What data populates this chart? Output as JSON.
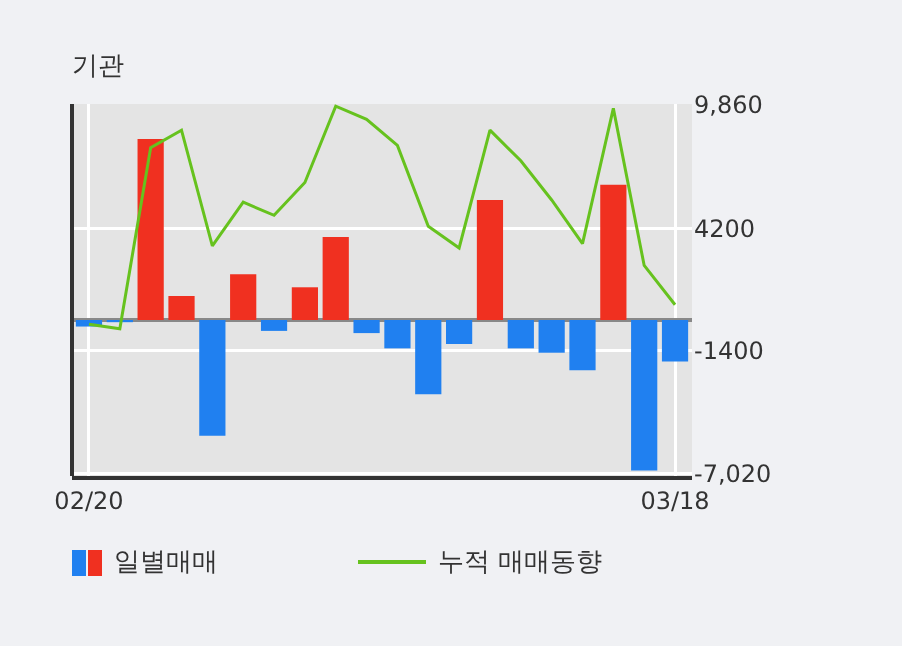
{
  "chart_data": {
    "type": "bar",
    "title": "기관",
    "categories": [
      "02/20",
      null,
      null,
      null,
      null,
      null,
      null,
      null,
      null,
      null,
      null,
      null,
      null,
      null,
      null,
      null,
      null,
      null,
      null,
      "03/18"
    ],
    "series": [
      {
        "name": "일별매매",
        "colors": [
          "#2080f0",
          "#2080f0",
          "#f03020",
          "#f03020",
          "#2080f0",
          "#f03020",
          "#2080f0",
          "#f03020",
          "#f03020",
          "#2080f0",
          "#2080f0",
          "#2080f0",
          "#2080f0",
          "#f03020",
          "#2080f0",
          "#2080f0",
          "#2080f0",
          "#f03020",
          "#2080f0",
          "#2080f0"
        ],
        "values": [
          -300,
          -100,
          8300,
          1100,
          -5300,
          2100,
          -500,
          1500,
          3800,
          -600,
          -1300,
          -3400,
          -1100,
          5500,
          -1300,
          -1500,
          -2300,
          6200,
          -6900,
          -1900
        ]
      },
      {
        "name": "누적 매매동향",
        "type": "line",
        "color": "#66c21e",
        "values": [
          -200,
          -400,
          7900,
          8700,
          3400,
          5400,
          4800,
          6300,
          9800,
          9200,
          8000,
          4300,
          3300,
          8700,
          7300,
          5500,
          3500,
          9700,
          2500,
          700
        ]
      }
    ],
    "ylim": [
      -7150,
      9900
    ],
    "yticks": [
      {
        "value": 9860,
        "label": "9,860"
      },
      4200,
      -1400,
      {
        "value": -7020,
        "label": "-7,020"
      }
    ],
    "grid": true,
    "legend": "bottom",
    "marker": "none",
    "line_style": "solid"
  }
}
